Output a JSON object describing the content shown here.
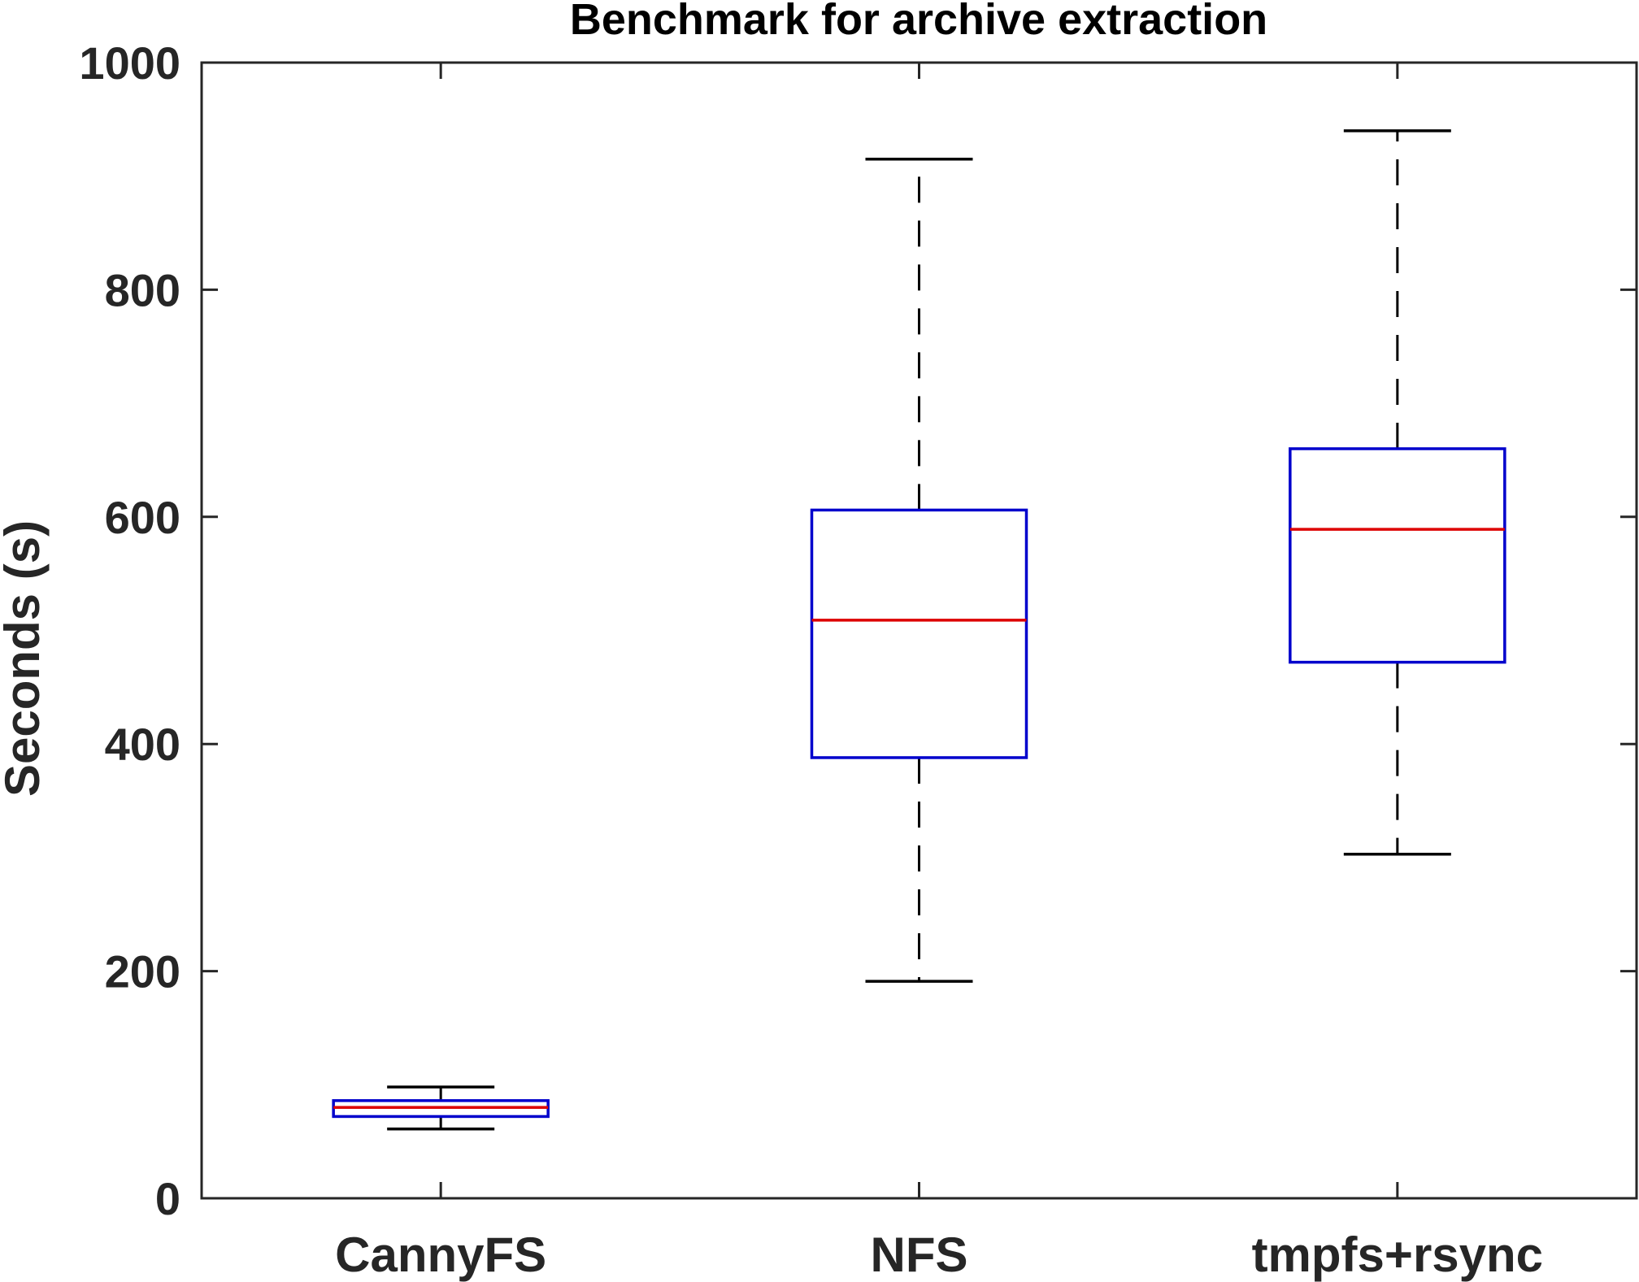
{
  "chart_data": {
    "type": "boxplot",
    "title": "Benchmark for archive extraction",
    "xlabel": "",
    "ylabel": "Seconds (s)",
    "ylim": [
      0,
      1000
    ],
    "yticks": [
      0,
      200,
      400,
      600,
      800,
      1000
    ],
    "grid": false,
    "categories": [
      "CannyFS",
      "NFS",
      "tmpfs+rsync"
    ],
    "boxes": [
      {
        "category": "CannyFS",
        "whisker_low": 61,
        "q1": 72,
        "median": 80,
        "q3": 86,
        "whisker_high": 98
      },
      {
        "category": "NFS",
        "whisker_low": 191,
        "q1": 388,
        "median": 509,
        "q3": 606,
        "whisker_high": 915
      },
      {
        "category": "tmpfs+rsync",
        "whisker_low": 303,
        "q1": 472,
        "median": 589,
        "q3": 660,
        "whisker_high": 940
      }
    ],
    "colors": {
      "box": "#0000cc",
      "median": "#dd0000",
      "whisker": "#000000",
      "axis": "#262626"
    }
  }
}
